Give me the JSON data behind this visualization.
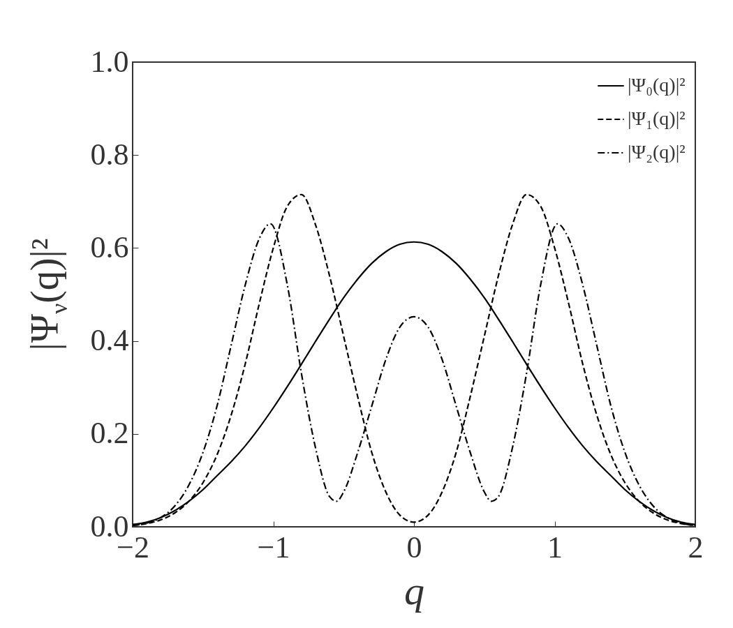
{
  "chart_data": {
    "type": "line",
    "xlabel": "q",
    "ylabel": "|Ψ$_{ν}$(q)|²",
    "x": [
      -2,
      -1.9,
      -1.8,
      -1.7,
      -1.6,
      -1.5,
      -1.4,
      -1.3,
      -1.2,
      -1.1,
      -1,
      -0.9,
      -0.8,
      -0.7,
      -0.6,
      -0.5,
      -0.4,
      -0.3,
      -0.2,
      -0.1,
      0,
      0.1,
      0.2,
      0.3,
      0.4,
      0.5,
      0.6,
      0.7,
      0.8,
      0.9,
      1,
      1.1,
      1.2,
      1.3,
      1.4,
      1.5,
      1.6,
      1.7,
      1.8,
      1.9,
      2
    ],
    "series": [
      {
        "name": "|Ψ₀(q)|²",
        "color": "#000000",
        "line_style": "solid",
        "values": [
          0.005,
          0.01,
          0.02,
          0.035,
          0.055,
          0.08,
          0.11,
          0.14,
          0.174,
          0.213,
          0.256,
          0.302,
          0.35,
          0.399,
          0.447,
          0.493,
          0.533,
          0.567,
          0.592,
          0.608,
          0.613,
          0.608,
          0.592,
          0.567,
          0.533,
          0.493,
          0.447,
          0.399,
          0.35,
          0.302,
          0.256,
          0.213,
          0.174,
          0.14,
          0.11,
          0.08,
          0.055,
          0.035,
          0.02,
          0.01,
          0.005
        ]
      },
      {
        "name": "|Ψ₁(q)|²",
        "color": "#000000",
        "line_style": "dashed",
        "values": [
          0.003,
          0.007,
          0.015,
          0.03,
          0.055,
          0.095,
          0.155,
          0.24,
          0.35,
          0.48,
          0.6,
          0.69,
          0.715,
          0.65,
          0.54,
          0.41,
          0.28,
          0.16,
          0.075,
          0.025,
          0.01,
          0.025,
          0.075,
          0.16,
          0.28,
          0.41,
          0.54,
          0.65,
          0.715,
          0.69,
          0.6,
          0.48,
          0.35,
          0.24,
          0.155,
          0.095,
          0.055,
          0.03,
          0.015,
          0.007,
          0.003
        ]
      },
      {
        "name": "|Ψ₂(q)|²",
        "color": "#000000",
        "line_style": "dashdot",
        "x": [
          -2,
          -1.9,
          -1.8,
          -1.7,
          -1.6,
          -1.5,
          -1.4,
          -1.3,
          -1.2,
          -1.1,
          -1.02,
          -0.9,
          -0.8,
          -0.7,
          -0.6,
          -0.55,
          -0.5,
          -0.4,
          -0.3,
          -0.2,
          -0.1,
          0,
          0.1,
          0.2,
          0.3,
          0.4,
          0.5,
          0.55,
          0.6,
          0.7,
          0.8,
          0.9,
          1.02,
          1.1,
          1.2,
          1.3,
          1.4,
          1.5,
          1.6,
          1.7,
          1.8,
          1.9,
          2
        ],
        "values": [
          0.003,
          0.008,
          0.02,
          0.045,
          0.09,
          0.16,
          0.26,
          0.39,
          0.52,
          0.62,
          0.652,
          0.52,
          0.33,
          0.17,
          0.065,
          0.055,
          0.075,
          0.16,
          0.26,
          0.36,
          0.43,
          0.452,
          0.43,
          0.36,
          0.26,
          0.16,
          0.075,
          0.055,
          0.065,
          0.17,
          0.33,
          0.52,
          0.652,
          0.62,
          0.52,
          0.39,
          0.26,
          0.16,
          0.09,
          0.045,
          0.02,
          0.008,
          0.003
        ]
      }
    ],
    "xlim": [
      -2,
      2
    ],
    "xticks": [
      {
        "value": -2,
        "label": "−2"
      },
      {
        "value": -1,
        "label": "−1"
      },
      0,
      1,
      2
    ],
    "ylim": [
      0,
      1
    ],
    "yticks": [
      {
        "value": 0,
        "label": "0.0"
      },
      0.2,
      0.4,
      0.6,
      0.8,
      {
        "value": 1,
        "label": "1.0"
      }
    ],
    "legend": "top right",
    "grid": false
  }
}
